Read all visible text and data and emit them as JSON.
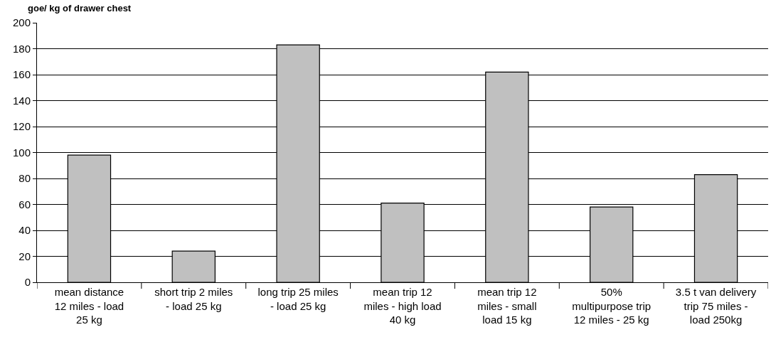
{
  "chart_data": {
    "type": "bar",
    "ylabel": "goe/ kg of drawer chest",
    "categories": [
      "mean distance\n12 miles - load\n25 kg",
      "short trip 2 miles\n- load 25 kg",
      "long trip 25 miles\n- load 25 kg",
      "mean trip 12\nmiles - high load\n40 kg",
      "mean trip 12\nmiles - small\nload 15 kg",
      "50%\nmultipurpose trip\n12 miles - 25 kg",
      "3.5 t van delivery\ntrip 75 miles -\nload 250kg"
    ],
    "values": [
      98,
      24,
      183,
      61,
      162,
      58,
      83
    ],
    "color": "#c0c0c0",
    "ylim": [
      0,
      200
    ],
    "yticks": [
      0,
      20,
      40,
      60,
      80,
      100,
      120,
      140,
      160,
      180,
      200
    ],
    "grid": "y"
  }
}
